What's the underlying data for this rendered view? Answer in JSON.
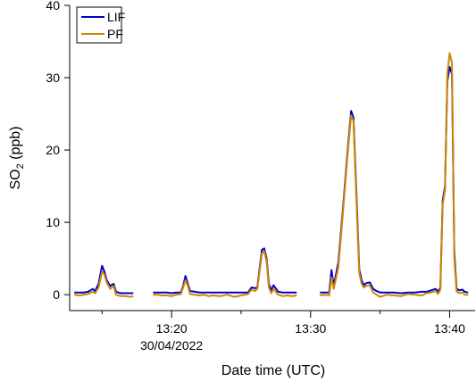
{
  "chart_data": {
    "type": "line",
    "title": "",
    "xlabel": "Date time (UTC)",
    "ylabel_main": "SO",
    "ylabel_sub": "2",
    "ylabel_tail": " (ppb)",
    "ylim": [
      -2.2,
      40
    ],
    "xlim": [
      "13:12:40",
      "13:41:50"
    ],
    "yticks": [
      0,
      10,
      20,
      30,
      40
    ],
    "xticks_major": [
      {
        "time": "13:20",
        "label": "13:20",
        "sublabel": "30/04/2022"
      },
      {
        "time": "13:30",
        "label": "13:30",
        "sublabel": ""
      },
      {
        "time": "13:40",
        "label": "13:40",
        "sublabel": ""
      }
    ],
    "xticks_minor": [
      "13:15",
      "13:25",
      "13:35"
    ],
    "grid": false,
    "legend_position": "top-left",
    "series": [
      {
        "name": "LIF",
        "color": "#0000cc",
        "segments": [
          [
            [
              "13:13:00",
              0.3
            ],
            [
              "13:13:20",
              0.3
            ],
            [
              "13:13:40",
              0.3
            ],
            [
              "13:14:00",
              0.4
            ],
            [
              "13:14:20",
              0.8
            ],
            [
              "13:14:30",
              0.5
            ],
            [
              "13:14:45",
              1.5
            ],
            [
              "13:15:00",
              4.0
            ],
            [
              "13:15:10",
              3.2
            ],
            [
              "13:15:20",
              2.0
            ],
            [
              "13:15:35",
              1.2
            ],
            [
              "13:15:50",
              1.5
            ],
            [
              "13:16:00",
              0.4
            ],
            [
              "13:16:20",
              0.2
            ],
            [
              "13:16:40",
              0.2
            ],
            [
              "13:17:00",
              0.2
            ],
            [
              "13:17:15",
              0.2
            ]
          ],
          [
            [
              "13:18:40",
              0.3
            ],
            [
              "13:19:00",
              0.3
            ],
            [
              "13:19:20",
              0.3
            ],
            [
              "13:19:40",
              0.3
            ],
            [
              "13:20:00",
              0.2
            ],
            [
              "13:20:20",
              0.3
            ],
            [
              "13:20:40",
              0.3
            ],
            [
              "13:20:50",
              1.2
            ],
            [
              "13:21:00",
              2.6
            ],
            [
              "13:21:10",
              1.5
            ],
            [
              "13:21:20",
              0.5
            ],
            [
              "13:21:40",
              0.4
            ],
            [
              "13:22:00",
              0.3
            ],
            [
              "13:22:20",
              0.3
            ],
            [
              "13:22:40",
              0.3
            ],
            [
              "13:23:00",
              0.3
            ],
            [
              "13:23:30",
              0.3
            ],
            [
              "13:24:00",
              0.3
            ],
            [
              "13:24:30",
              0.3
            ],
            [
              "13:25:00",
              0.3
            ],
            [
              "13:25:30",
              0.3
            ],
            [
              "13:25:45",
              1.0
            ],
            [
              "13:26:00",
              0.9
            ],
            [
              "13:26:10",
              1.0
            ],
            [
              "13:26:30",
              6.2
            ],
            [
              "13:26:40",
              6.4
            ],
            [
              "13:26:50",
              5.0
            ],
            [
              "13:27:00",
              1.5
            ],
            [
              "13:27:10",
              0.6
            ],
            [
              "13:27:20",
              1.3
            ],
            [
              "13:27:40",
              0.4
            ],
            [
              "13:28:00",
              0.3
            ],
            [
              "13:28:20",
              0.3
            ],
            [
              "13:28:40",
              0.3
            ],
            [
              "13:29:00",
              0.3
            ]
          ],
          [
            [
              "13:30:40",
              0.3
            ],
            [
              "13:31:00",
              0.3
            ],
            [
              "13:31:20",
              0.3
            ],
            [
              "13:31:30",
              3.4
            ],
            [
              "13:31:40",
              1.2
            ],
            [
              "13:32:00",
              4.5
            ],
            [
              "13:32:20",
              12.0
            ],
            [
              "13:32:40",
              20.0
            ],
            [
              "13:32:55",
              25.4
            ],
            [
              "13:33:05",
              24.5
            ],
            [
              "13:33:20",
              12.0
            ],
            [
              "13:33:30",
              3.5
            ],
            [
              "13:33:40",
              2.0
            ],
            [
              "13:33:50",
              1.3
            ],
            [
              "13:34:00",
              1.6
            ],
            [
              "13:34:15",
              1.7
            ],
            [
              "13:34:30",
              0.8
            ],
            [
              "13:34:45",
              0.5
            ],
            [
              "13:35:00",
              0.3
            ],
            [
              "13:35:30",
              0.3
            ],
            [
              "13:36:00",
              0.3
            ],
            [
              "13:36:30",
              0.2
            ],
            [
              "13:37:00",
              0.3
            ],
            [
              "13:37:30",
              0.3
            ],
            [
              "13:38:00",
              0.4
            ],
            [
              "13:38:20",
              0.4
            ],
            [
              "13:38:40",
              0.6
            ],
            [
              "13:39:00",
              0.8
            ],
            [
              "13:39:10",
              0.4
            ],
            [
              "13:39:20",
              1.0
            ],
            [
              "13:39:30",
              13.0
            ],
            [
              "13:39:40",
              15.0
            ],
            [
              "13:39:50",
              29.5
            ],
            [
              "13:40:00",
              31.5
            ],
            [
              "13:40:10",
              30.5
            ],
            [
              "13:40:20",
              6.0
            ],
            [
              "13:40:30",
              0.9
            ],
            [
              "13:40:40",
              0.6
            ],
            [
              "13:40:55",
              0.7
            ],
            [
              "13:41:05",
              0.4
            ],
            [
              "13:41:20",
              0.3
            ]
          ]
        ]
      },
      {
        "name": "PF",
        "color": "#cc8800",
        "segments": [
          [
            [
              "13:13:00",
              0.0
            ],
            [
              "13:13:20",
              -0.1
            ],
            [
              "13:13:40",
              0.0
            ],
            [
              "13:14:00",
              0.1
            ],
            [
              "13:14:20",
              0.4
            ],
            [
              "13:14:30",
              0.2
            ],
            [
              "13:14:45",
              1.0
            ],
            [
              "13:15:00",
              3.2
            ],
            [
              "13:15:10",
              2.8
            ],
            [
              "13:15:20",
              1.7
            ],
            [
              "13:15:35",
              0.8
            ],
            [
              "13:15:50",
              1.2
            ],
            [
              "13:16:00",
              0.0
            ],
            [
              "13:16:20",
              -0.2
            ],
            [
              "13:16:40",
              -0.2
            ],
            [
              "13:17:00",
              -0.3
            ],
            [
              "13:17:15",
              -0.2
            ]
          ],
          [
            [
              "13:18:40",
              0.0
            ],
            [
              "13:19:00",
              0.0
            ],
            [
              "13:19:20",
              -0.1
            ],
            [
              "13:19:40",
              -0.1
            ],
            [
              "13:20:00",
              -0.2
            ],
            [
              "13:20:20",
              0.0
            ],
            [
              "13:20:40",
              0.1
            ],
            [
              "13:20:50",
              1.0
            ],
            [
              "13:21:00",
              2.0
            ],
            [
              "13:21:10",
              1.2
            ],
            [
              "13:21:20",
              0.1
            ],
            [
              "13:21:40",
              0.0
            ],
            [
              "13:22:00",
              -0.1
            ],
            [
              "13:22:20",
              0.0
            ],
            [
              "13:22:40",
              -0.2
            ],
            [
              "13:23:00",
              -0.1
            ],
            [
              "13:23:30",
              -0.2
            ],
            [
              "13:24:00",
              0.0
            ],
            [
              "13:24:30",
              -0.3
            ],
            [
              "13:25:00",
              -0.1
            ],
            [
              "13:25:30",
              0.1
            ],
            [
              "13:25:45",
              0.7
            ],
            [
              "13:26:00",
              0.5
            ],
            [
              "13:26:10",
              0.8
            ],
            [
              "13:26:30",
              5.7
            ],
            [
              "13:26:40",
              6.0
            ],
            [
              "13:26:50",
              4.6
            ],
            [
              "13:27:00",
              1.0
            ],
            [
              "13:27:10",
              0.2
            ],
            [
              "13:27:20",
              0.8
            ],
            [
              "13:27:40",
              0.0
            ],
            [
              "13:28:00",
              -0.2
            ],
            [
              "13:28:20",
              -0.1
            ],
            [
              "13:28:40",
              -0.2
            ],
            [
              "13:29:00",
              -0.1
            ]
          ],
          [
            [
              "13:30:40",
              -0.1
            ],
            [
              "13:31:00",
              0.0
            ],
            [
              "13:31:20",
              -0.1
            ],
            [
              "13:31:30",
              2.4
            ],
            [
              "13:31:40",
              0.8
            ],
            [
              "13:32:00",
              3.8
            ],
            [
              "13:32:20",
              11.5
            ],
            [
              "13:32:40",
              19.5
            ],
            [
              "13:32:55",
              24.8
            ],
            [
              "13:33:05",
              24.0
            ],
            [
              "13:33:20",
              11.0
            ],
            [
              "13:33:30",
              3.0
            ],
            [
              "13:33:40",
              1.5
            ],
            [
              "13:33:50",
              1.0
            ],
            [
              "13:34:00",
              1.2
            ],
            [
              "13:34:15",
              1.3
            ],
            [
              "13:34:30",
              0.3
            ],
            [
              "13:34:45",
              0.0
            ],
            [
              "13:35:00",
              -0.3
            ],
            [
              "13:35:30",
              0.0
            ],
            [
              "13:36:00",
              -0.1
            ],
            [
              "13:36:30",
              -0.2
            ],
            [
              "13:37:00",
              0.1
            ],
            [
              "13:37:30",
              0.0
            ],
            [
              "13:38:00",
              -0.1
            ],
            [
              "13:38:20",
              0.2
            ],
            [
              "13:38:40",
              0.3
            ],
            [
              "13:39:00",
              0.5
            ],
            [
              "13:39:10",
              0.1
            ],
            [
              "13:39:20",
              0.7
            ],
            [
              "13:39:30",
              12.5
            ],
            [
              "13:39:40",
              14.5
            ],
            [
              "13:39:50",
              30.5
            ],
            [
              "13:40:00",
              33.4
            ],
            [
              "13:40:10",
              32.0
            ],
            [
              "13:40:20",
              5.0
            ],
            [
              "13:40:30",
              0.5
            ],
            [
              "13:40:40",
              0.2
            ],
            [
              "13:40:55",
              0.3
            ],
            [
              "13:41:05",
              0.0
            ],
            [
              "13:41:20",
              0.0
            ]
          ]
        ]
      }
    ]
  }
}
